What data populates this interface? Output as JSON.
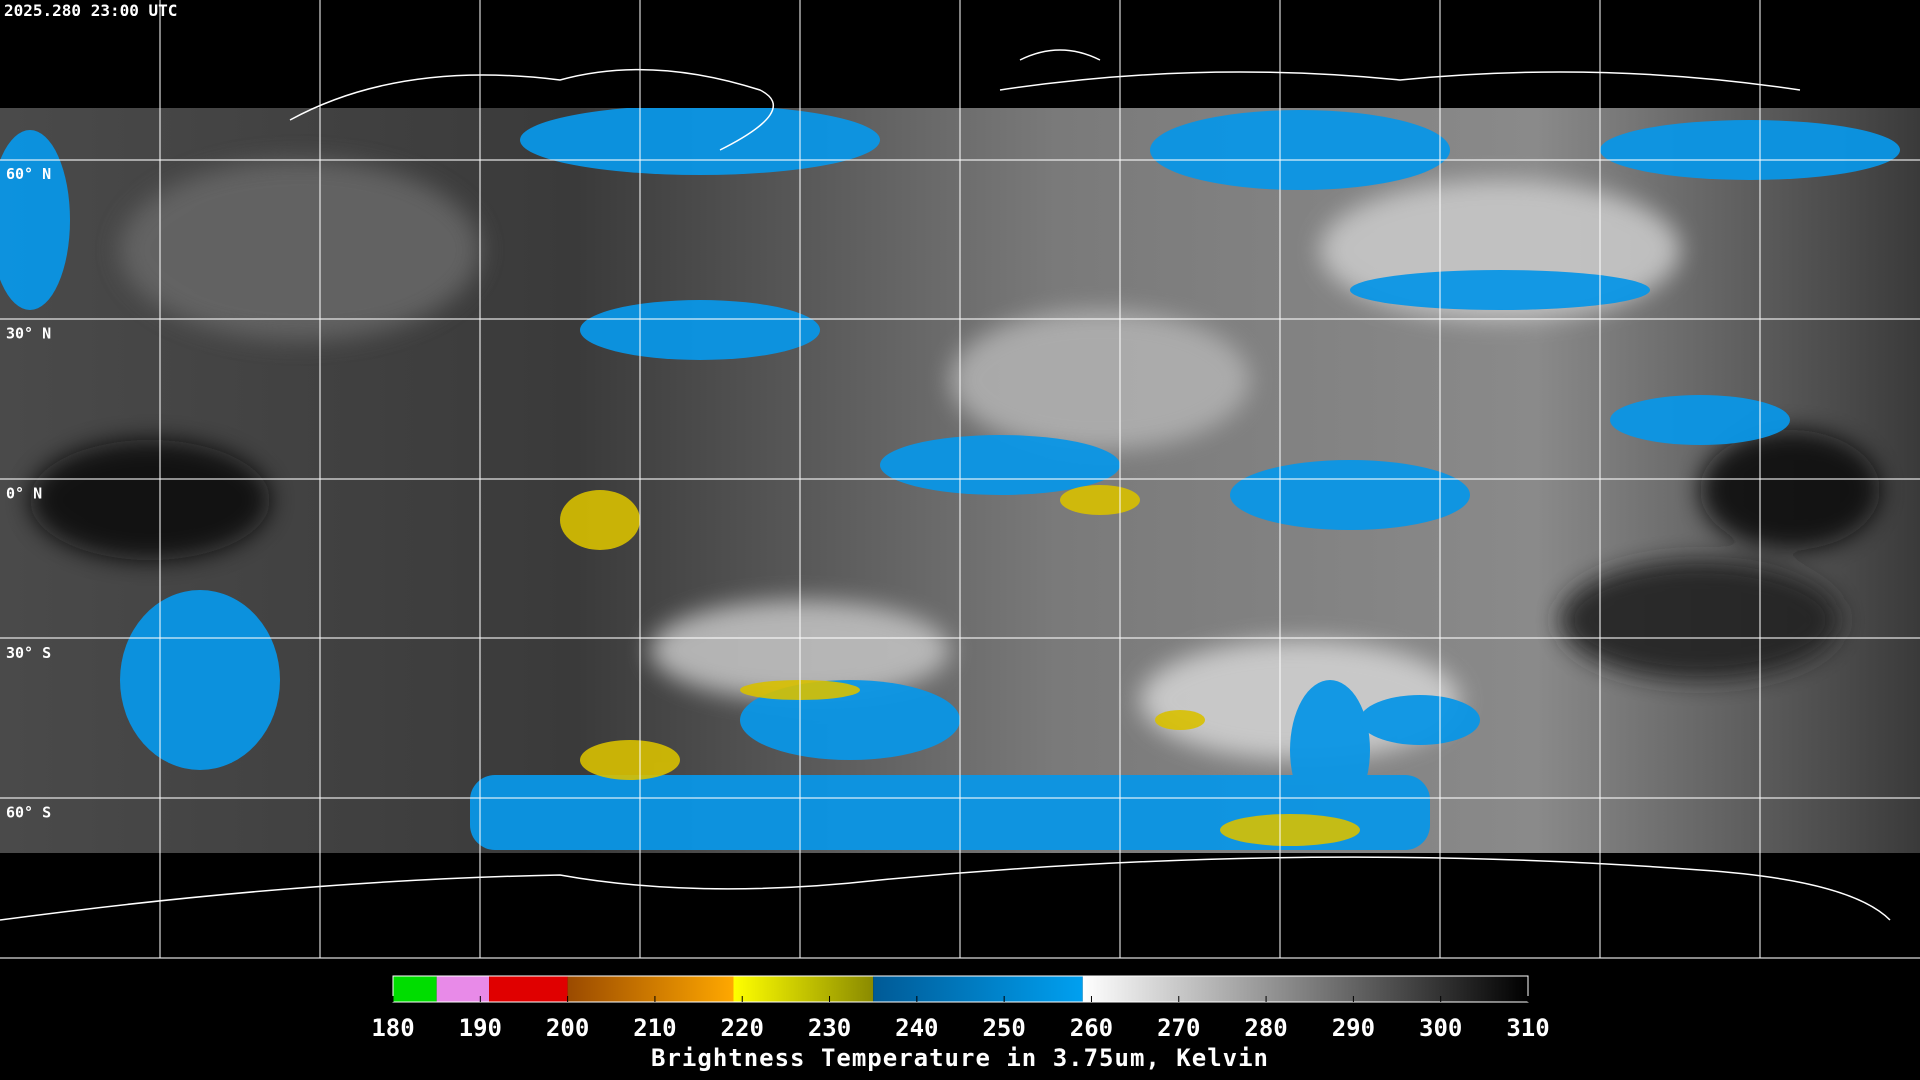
{
  "timestamp": "2025.280 23:00 UTC",
  "latitude_labels": [
    "60° N",
    "30° N",
    "0° N",
    "30° S",
    "60° S"
  ],
  "colorbar": {
    "title": "Brightness Temperature in 3.75um, Kelvin",
    "range": [
      180,
      310
    ],
    "ticks": [
      180,
      190,
      200,
      210,
      220,
      230,
      240,
      250,
      260,
      270,
      280,
      290,
      300,
      310
    ],
    "segments": [
      {
        "from": 180,
        "to": 185,
        "colors": [
          "#00dd00",
          "#00dd00"
        ]
      },
      {
        "from": 185,
        "to": 191,
        "colors": [
          "#e88ae8",
          "#e88ae8"
        ]
      },
      {
        "from": 191,
        "to": 200,
        "colors": [
          "#e00000",
          "#e00000"
        ]
      },
      {
        "from": 200,
        "to": 219,
        "colors": [
          "#9a4a00",
          "#ffa800"
        ]
      },
      {
        "from": 219,
        "to": 235,
        "colors": [
          "#ffff00",
          "#8a8a00"
        ]
      },
      {
        "from": 235,
        "to": 259,
        "colors": [
          "#005a96",
          "#00a0f0"
        ]
      },
      {
        "from": 259,
        "to": 310,
        "colors": [
          "#ffffff",
          "#000000"
        ]
      }
    ]
  }
}
